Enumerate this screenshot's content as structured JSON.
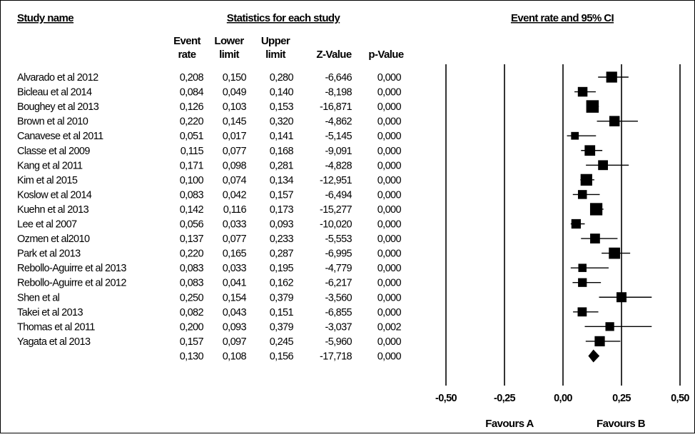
{
  "headers": {
    "study_name": "Study name",
    "statistics": "Statistics for each study",
    "plot": "Event rate and 95% CI"
  },
  "columns": {
    "event_rate": [
      "Event",
      "rate"
    ],
    "lower_limit": [
      "Lower",
      "limit"
    ],
    "upper_limit": [
      "Upper",
      "limit"
    ],
    "z_value": "Z-Value",
    "p_value": "p-Value"
  },
  "favours": {
    "left": "Favours A",
    "right": "Favours B"
  },
  "chart_data": {
    "type": "forest",
    "title": "Event rate and 95% CI",
    "xlim": [
      -0.5,
      0.5
    ],
    "x_ticks": [
      -0.5,
      -0.25,
      0.0,
      0.25,
      0.5
    ],
    "x_tick_labels": [
      "-0,50",
      "-0,25",
      "0,00",
      "0,25",
      "0,50"
    ],
    "studies": [
      {
        "name": "Alvarado et al 2012",
        "event_rate": 0.208,
        "lower": 0.15,
        "upper": 0.28,
        "z": "-6,646",
        "p": "0,000",
        "rate_label": "0,208",
        "lower_label": "0,150",
        "upper_label": "0,280",
        "weight": 6.1
      },
      {
        "name": "Bicleau et al 2014",
        "event_rate": 0.084,
        "lower": 0.049,
        "upper": 0.14,
        "z": "-8,198",
        "p": "0,000",
        "rate_label": "0,084",
        "lower_label": "0,049",
        "upper_label": "0,140",
        "weight": 5.4
      },
      {
        "name": "Boughey et al 2013",
        "event_rate": 0.126,
        "lower": 0.103,
        "upper": 0.153,
        "z": "-16,871",
        "p": "0,000",
        "rate_label": "0,126",
        "lower_label": "0,103",
        "upper_label": "0,153",
        "weight": 7.0
      },
      {
        "name": "Brown et al 2010",
        "event_rate": 0.22,
        "lower": 0.145,
        "upper": 0.32,
        "z": "-4,862",
        "p": "0,000",
        "rate_label": "0,220",
        "lower_label": "0,145",
        "upper_label": "0,320",
        "weight": 5.8
      },
      {
        "name": "Canavese et al 2011",
        "event_rate": 0.051,
        "lower": 0.017,
        "upper": 0.141,
        "z": "-5,145",
        "p": "0,000",
        "rate_label": "0,051",
        "lower_label": "0,017",
        "upper_label": "0,141",
        "weight": 4.3
      },
      {
        "name": "Classe et al 2009",
        "event_rate": 0.115,
        "lower": 0.077,
        "upper": 0.168,
        "z": "-9,091",
        "p": "0,000",
        "rate_label": "0,115",
        "lower_label": "0,077",
        "upper_label": "0,168",
        "weight": 5.9
      },
      {
        "name": "Kang et al 2011",
        "event_rate": 0.171,
        "lower": 0.098,
        "upper": 0.281,
        "z": "-4,828",
        "p": "0,000",
        "rate_label": "0,171",
        "lower_label": "0,098",
        "upper_label": "0,281",
        "weight": 5.5
      },
      {
        "name": "Kim et al 2015",
        "event_rate": 0.1,
        "lower": 0.074,
        "upper": 0.134,
        "z": "-12,951",
        "p": "0,000",
        "rate_label": "0,100",
        "lower_label": "0,074",
        "upper_label": "0,134",
        "weight": 6.5
      },
      {
        "name": "Koslow et al 2014",
        "event_rate": 0.083,
        "lower": 0.042,
        "upper": 0.157,
        "z": "-6,494",
        "p": "0,000",
        "rate_label": "0,083",
        "lower_label": "0,042",
        "upper_label": "0,157",
        "weight": 5.0
      },
      {
        "name": "Kuehn et al 2013",
        "event_rate": 0.142,
        "lower": 0.116,
        "upper": 0.173,
        "z": "-15,277",
        "p": "0,000",
        "rate_label": "0,142",
        "lower_label": "0,116",
        "upper_label": "0,173",
        "weight": 6.9
      },
      {
        "name": "Lee et al 2007",
        "event_rate": 0.056,
        "lower": 0.033,
        "upper": 0.093,
        "z": "-10,020",
        "p": "0,000",
        "rate_label": "0,056",
        "lower_label": "0,033",
        "upper_label": "0,093",
        "weight": 5.3
      },
      {
        "name": "Ozmen et al2010",
        "event_rate": 0.137,
        "lower": 0.077,
        "upper": 0.233,
        "z": "-5,553",
        "p": "0,000",
        "rate_label": "0,137",
        "lower_label": "0,077",
        "upper_label": "0,233",
        "weight": 5.5
      },
      {
        "name": "Park et al 2013",
        "event_rate": 0.22,
        "lower": 0.165,
        "upper": 0.287,
        "z": "-6,995",
        "p": "0,000",
        "rate_label": "0,220",
        "lower_label": "0,165",
        "upper_label": "0,287",
        "weight": 6.3
      },
      {
        "name": "Rebollo-Aguirre et al 2013",
        "event_rate": 0.083,
        "lower": 0.033,
        "upper": 0.195,
        "z": "-4,779",
        "p": "0,000",
        "rate_label": "0,083",
        "lower_label": "0,033",
        "upper_label": "0,195",
        "weight": 4.6
      },
      {
        "name": "Rebollo-Aguirre et al 2012",
        "event_rate": 0.083,
        "lower": 0.041,
        "upper": 0.162,
        "z": "-6,217",
        "p": "0,000",
        "rate_label": "0,083",
        "lower_label": "0,041",
        "upper_label": "0,162",
        "weight": 4.9
      },
      {
        "name": "Shen et al",
        "event_rate": 0.25,
        "lower": 0.154,
        "upper": 0.379,
        "z": "-3,560",
        "p": "0,000",
        "rate_label": "0,250",
        "lower_label": "0,154",
        "upper_label": "0,379",
        "weight": 5.6
      },
      {
        "name": "Takei et al 2013",
        "event_rate": 0.082,
        "lower": 0.043,
        "upper": 0.151,
        "z": "-6,855",
        "p": "0,000",
        "rate_label": "0,082",
        "lower_label": "0,043",
        "upper_label": "0,151",
        "weight": 5.1
      },
      {
        "name": "Thomas et al 2011",
        "event_rate": 0.2,
        "lower": 0.093,
        "upper": 0.379,
        "z": "-3,037",
        "p": "0,002",
        "rate_label": "0,200",
        "lower_label": "0,093",
        "upper_label": "0,379",
        "weight": 4.9
      },
      {
        "name": "Yagata et al 2013",
        "event_rate": 0.157,
        "lower": 0.097,
        "upper": 0.245,
        "z": "-5,960",
        "p": "0,000",
        "rate_label": "0,157",
        "lower_label": "0,097",
        "upper_label": "0,245",
        "weight": 5.7
      }
    ],
    "summary": {
      "event_rate": 0.13,
      "lower": 0.108,
      "upper": 0.156,
      "z": "-17,718",
      "p": "0,000",
      "rate_label": "0,130",
      "lower_label": "0,108",
      "upper_label": "0,156"
    }
  }
}
